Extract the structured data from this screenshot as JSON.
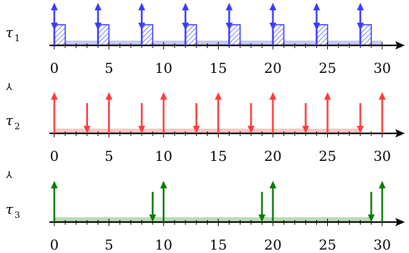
{
  "tasks": [
    {
      "label": "τ",
      "subscript": "1",
      "color": "#3b3bff",
      "band_color": "#c7c9f5",
      "releases": [
        0,
        4,
        8,
        12,
        16,
        20,
        24,
        28
      ],
      "deadlines": [
        0,
        4,
        8,
        12,
        16,
        20,
        24,
        28
      ],
      "executions": [
        [
          0,
          1
        ],
        [
          4,
          5
        ],
        [
          8,
          9
        ],
        [
          12,
          13
        ],
        [
          16,
          17
        ],
        [
          20,
          21
        ],
        [
          24,
          25
        ],
        [
          28,
          29
        ]
      ],
      "band": [
        0,
        30
      ]
    },
    {
      "label": "τ",
      "subscript": "2",
      "color": "#ff3b3b",
      "band_color": "#f7c7c7",
      "releases": [
        0,
        5,
        10,
        15,
        20,
        25,
        30
      ],
      "deadlines": [
        3,
        8,
        13,
        18,
        23,
        28
      ],
      "executions": [],
      "band": [
        0,
        28
      ]
    },
    {
      "label": "τ",
      "subscript": "3",
      "color": "#0a7a0a",
      "band_color": "#b9dcb3",
      "releases": [
        0,
        10,
        20,
        30
      ],
      "deadlines": [
        9,
        19,
        29
      ],
      "executions": [],
      "band": [
        0,
        29
      ]
    }
  ],
  "axis": {
    "min": 0,
    "max": 30,
    "major_ticks": [
      0,
      5,
      10,
      15,
      20,
      25,
      30
    ],
    "tick_labels": [
      "0",
      "5",
      "10",
      "15",
      "20",
      "25",
      "30"
    ]
  },
  "separator_glyph": "⅄"
}
